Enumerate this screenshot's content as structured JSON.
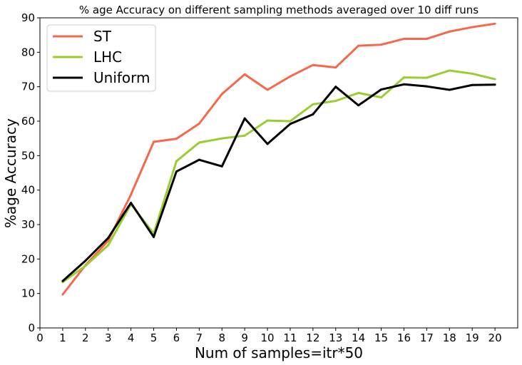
{
  "chart_data": {
    "type": "line",
    "title": "% age Accuracy on different sampling methods averaged over 10 diff runs",
    "xlabel": "Num of samples=itr*50",
    "ylabel": "%age Accuracy",
    "xlim": [
      0,
      21
    ],
    "ylim": [
      0,
      90
    ],
    "xticks": [
      "0",
      "1",
      "2",
      "3",
      "4",
      "5",
      "6",
      "7",
      "8",
      "9",
      "10",
      "11",
      "12",
      "13",
      "14",
      "15",
      "16",
      "17",
      "18",
      "19",
      "20"
    ],
    "yticks": [
      "0",
      "10",
      "20",
      "30",
      "40",
      "50",
      "60",
      "70",
      "80",
      "90"
    ],
    "grid": false,
    "legend_position": "top-left",
    "x": [
      1,
      2,
      3,
      4,
      5,
      6,
      7,
      8,
      9,
      10,
      11,
      12,
      13,
      14,
      15,
      16,
      17,
      18,
      19,
      20
    ],
    "series": [
      {
        "name": "ST",
        "color": "#f4694b",
        "values": [
          9.7,
          18.2,
          25.3,
          38.7,
          54.0,
          54.9,
          59.3,
          67.9,
          73.6,
          69.1,
          73.0,
          76.3,
          75.6,
          81.9,
          82.2,
          83.9,
          83.9,
          86.0,
          87.3,
          88.3
        ]
      },
      {
        "name": "LHC",
        "color": "#9acd32",
        "values": [
          13.3,
          18.0,
          24.0,
          35.9,
          27.4,
          48.4,
          53.8,
          55.0,
          55.8,
          60.2,
          60.0,
          64.9,
          65.9,
          68.2,
          66.9,
          72.7,
          72.6,
          74.7,
          73.8,
          72.2
        ]
      },
      {
        "name": "Uniform",
        "color": "#000000",
        "values": [
          13.6,
          19.5,
          26.1,
          36.3,
          26.4,
          45.4,
          48.8,
          46.9,
          60.8,
          53.4,
          59.2,
          62.0,
          70.0,
          64.6,
          69.2,
          70.7,
          70.1,
          69.1,
          70.5,
          70.6
        ]
      }
    ]
  }
}
